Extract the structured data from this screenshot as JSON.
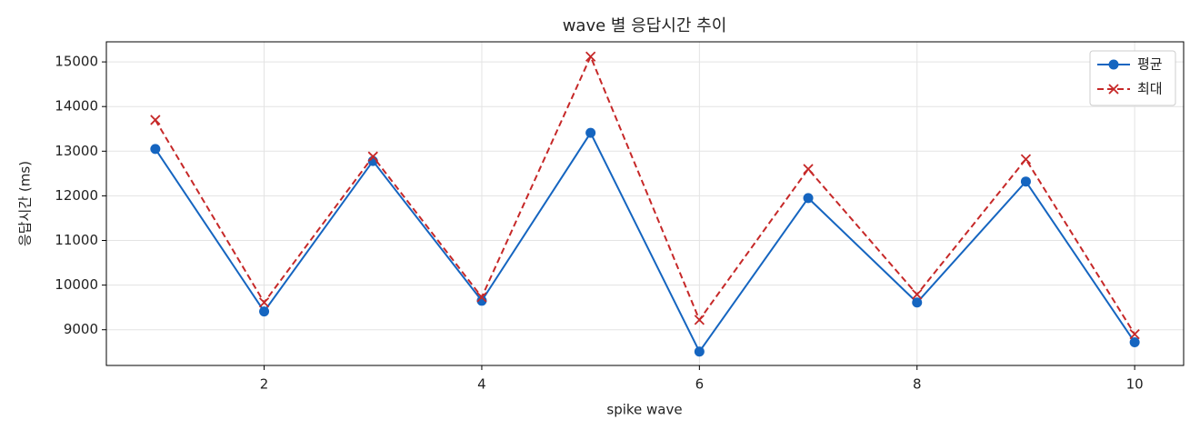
{
  "chart_data": {
    "type": "line",
    "title": "wave 별 응답시간 추이",
    "x_label": "spike wave",
    "y_label": "응답시간 (ms)",
    "x": [
      1,
      2,
      3,
      4,
      5,
      6,
      7,
      8,
      9,
      10
    ],
    "series": [
      {
        "name": "평균",
        "color": "#1565c0",
        "marker": "circle",
        "linestyle": "solid",
        "values": [
          13050,
          9410,
          12780,
          9650,
          13410,
          8510,
          11950,
          9610,
          12320,
          8720
        ]
      },
      {
        "name": "최대",
        "color": "#c62828",
        "marker": "cross",
        "linestyle": "dashed",
        "values": [
          13700,
          9610,
          12880,
          9730,
          15120,
          9220,
          12600,
          9790,
          12820,
          8900
        ]
      }
    ],
    "xlim": [
      0.55,
      10.45
    ],
    "ylim": [
      8200,
      15450
    ],
    "xticks": [
      2,
      4,
      6,
      8,
      10
    ],
    "yticks": [
      9000,
      10000,
      11000,
      12000,
      13000,
      14000,
      15000
    ],
    "grid": true,
    "legend": "upper right"
  }
}
